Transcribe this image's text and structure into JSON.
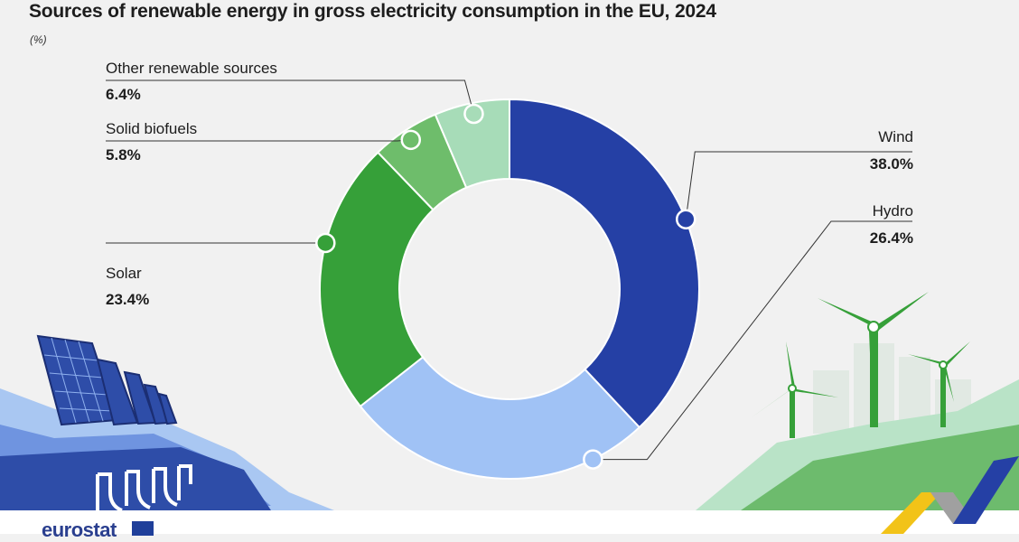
{
  "title": "Sources of renewable energy in gross electricity consumption in the EU, 2024",
  "unit": "(%)",
  "brand": "eurostat",
  "chart_data": {
    "type": "pie",
    "title": "Sources of renewable energy in gross electricity consumption in the EU, 2024",
    "unit": "%",
    "categories": [
      "Wind",
      "Hydro",
      "Solar",
      "Solid biofuels",
      "Other renewable sources"
    ],
    "values": [
      38.0,
      26.4,
      23.4,
      5.8,
      6.4
    ],
    "colors": [
      "#2540a5",
      "#a0c2f5",
      "#36a039",
      "#6ebd6b",
      "#a7dcb8"
    ],
    "value_labels": [
      "38.0%",
      "26.4%",
      "23.4%",
      "5.8%",
      "6.4%"
    ]
  }
}
